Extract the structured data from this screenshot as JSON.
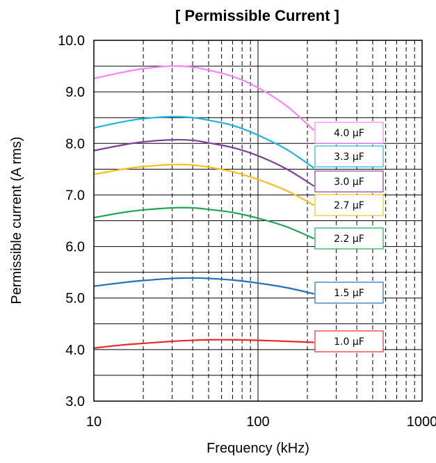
{
  "chart_data": {
    "type": "line",
    "title": "[ Permissible Current ]",
    "xlabel": "Frequency (kHz)",
    "ylabel": "Permissible current  (A rms)",
    "xscale": "log",
    "xlim": [
      10,
      1000
    ],
    "ylim": [
      3.0,
      10.0
    ],
    "x_ticks": [
      10,
      100,
      1000
    ],
    "x_tick_labels": [
      "10",
      "100",
      "1000"
    ],
    "y_ticks": [
      3.0,
      4.0,
      5.0,
      6.0,
      7.0,
      8.0,
      9.0,
      10.0
    ],
    "y_tick_labels": [
      "3.0",
      "4.0",
      "5.0",
      "6.0",
      "7.0",
      "8.0",
      "9.0",
      "10.0"
    ],
    "grid": true,
    "legend_placement": "right, next to series ends",
    "series": [
      {
        "name": "4.0 μF",
        "color": "#ff80ff",
        "x": [
          10,
          15,
          20,
          30,
          40,
          50,
          70,
          100,
          150,
          220
        ],
        "y": [
          9.26,
          9.38,
          9.45,
          9.5,
          9.48,
          9.42,
          9.3,
          9.08,
          8.72,
          8.25
        ]
      },
      {
        "name": "3.3 μF",
        "color": "#1ab4e6",
        "x": [
          10,
          15,
          20,
          30,
          40,
          50,
          70,
          100,
          150,
          220
        ],
        "y": [
          8.3,
          8.42,
          8.48,
          8.52,
          8.5,
          8.45,
          8.35,
          8.16,
          7.88,
          7.52
        ]
      },
      {
        "name": "3.0 μF",
        "color": "#7f3f98",
        "x": [
          10,
          15,
          20,
          30,
          40,
          50,
          70,
          100,
          150,
          220
        ],
        "y": [
          7.86,
          7.97,
          8.03,
          8.07,
          8.06,
          8.01,
          7.92,
          7.76,
          7.5,
          7.17
        ]
      },
      {
        "name": "2.7 μF",
        "color": "#f9be1c",
        "x": [
          10,
          15,
          20,
          30,
          40,
          50,
          70,
          100,
          150,
          220
        ],
        "y": [
          7.4,
          7.5,
          7.55,
          7.59,
          7.58,
          7.54,
          7.45,
          7.3,
          7.08,
          6.8
        ]
      },
      {
        "name": "2.2 μF",
        "color": "#1aa854",
        "x": [
          10,
          15,
          20,
          30,
          40,
          50,
          70,
          100,
          150,
          220
        ],
        "y": [
          6.56,
          6.66,
          6.71,
          6.75,
          6.75,
          6.72,
          6.66,
          6.55,
          6.38,
          6.15
        ]
      },
      {
        "name": "1.5 μF",
        "color": "#1f6fbf",
        "x": [
          10,
          15,
          20,
          30,
          40,
          50,
          70,
          100,
          150,
          220
        ],
        "y": [
          5.23,
          5.3,
          5.34,
          5.38,
          5.39,
          5.38,
          5.35,
          5.29,
          5.2,
          5.08
        ]
      },
      {
        "name": "1.0 μF",
        "color": "#e8282c",
        "x": [
          10,
          15,
          20,
          30,
          40,
          50,
          70,
          100,
          150,
          220
        ],
        "y": [
          4.03,
          4.09,
          4.12,
          4.16,
          4.18,
          4.19,
          4.19,
          4.18,
          4.16,
          4.14
        ]
      }
    ]
  }
}
